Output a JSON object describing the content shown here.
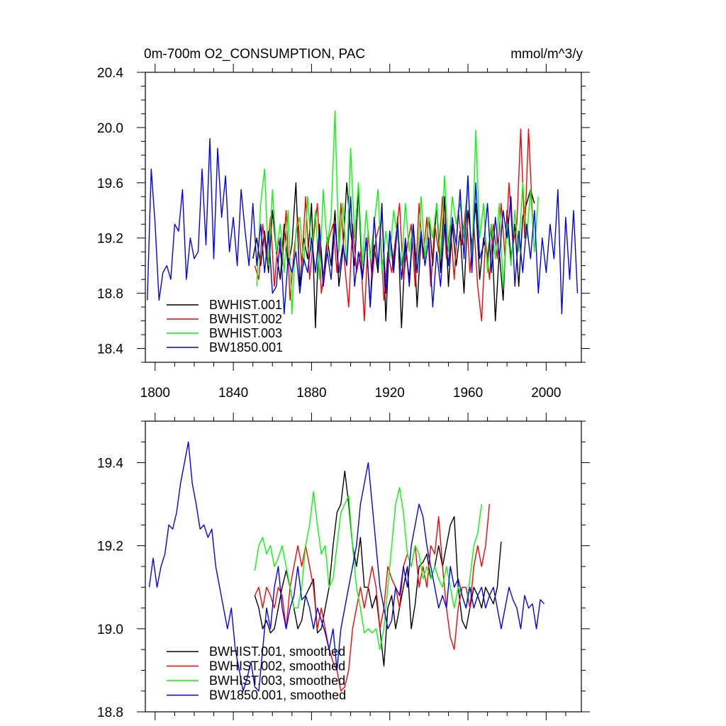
{
  "chart_data": [
    {
      "type": "line",
      "title": "0m-700m O2_CONSUMPTION, PAC",
      "units": "mmol/m^3/y",
      "xlim": [
        1795,
        2018
      ],
      "ylim": [
        18.3,
        20.4
      ],
      "xticks": [
        1800,
        1840,
        1880,
        1920,
        1960,
        2000
      ],
      "yticks": [
        18.4,
        18.8,
        19.2,
        19.6,
        20.0,
        20.4
      ],
      "ytick_labels": [
        "18.4",
        "18.8",
        "19.2",
        "19.6",
        "20.0",
        "20.4"
      ],
      "legend": "bottom-left",
      "series": [
        {
          "name": "BWHIST.001",
          "color": "#000000",
          "x_start": 1850,
          "step": 2,
          "values": [
            19.05,
            19.2,
            19.0,
            19.25,
            18.95,
            19.4,
            19.1,
            18.9,
            19.3,
            19.0,
            19.15,
            19.6,
            18.85,
            19.2,
            19.05,
            19.45,
            18.55,
            19.3,
            18.9,
            19.2,
            19.0,
            19.4,
            18.85,
            19.1,
            19.6,
            19.25,
            19.0,
            19.55,
            18.9,
            19.2,
            18.7,
            19.15,
            18.95,
            19.45,
            18.6,
            19.25,
            19.0,
            19.35,
            18.55,
            19.15,
            18.9,
            19.3,
            18.7,
            19.2,
            19.05,
            19.35,
            19.0,
            19.45,
            18.95,
            19.5,
            18.85,
            19.3,
            19.0,
            19.25,
            18.8,
            19.4,
            19.15,
            19.45,
            18.9,
            19.2,
            19.05,
            19.3,
            18.6,
            19.1,
            18.75,
            19.4,
            19.05,
            19.3,
            18.85,
            19.35,
            19.45,
            19.55,
            19.45
          ]
        },
        {
          "name": "BWHIST.002",
          "color": "#ff0000",
          "x_start": 1851,
          "step": 2,
          "values": [
            19.0,
            18.9,
            19.3,
            19.05,
            19.35,
            18.85,
            19.2,
            19.0,
            19.4,
            18.75,
            19.1,
            19.35,
            19.0,
            19.5,
            18.9,
            19.2,
            19.45,
            18.8,
            19.0,
            19.2,
            19.3,
            18.95,
            19.45,
            19.0,
            18.7,
            19.3,
            18.95,
            19.1,
            18.6,
            19.25,
            18.9,
            19.2,
            19.3,
            18.75,
            19.1,
            18.95,
            19.2,
            19.45,
            18.9,
            19.15,
            19.3,
            18.85,
            19.45,
            19.05,
            19.35,
            18.85,
            19.3,
            19.1,
            19.5,
            19.05,
            19.3,
            18.9,
            19.4,
            19.15,
            19.45,
            18.95,
            19.3,
            18.85,
            18.6,
            19.2,
            18.9,
            19.3,
            19.05,
            19.45,
            19.05,
            19.6,
            19.15,
            19.3,
            19.99,
            19.2,
            19.99,
            19.35
          ]
        },
        {
          "name": "BWHIST.003",
          "color": "#00ff00",
          "x_start": 1852,
          "step": 2,
          "values": [
            18.85,
            19.45,
            19.7,
            19.0,
            19.55,
            19.1,
            19.3,
            18.95,
            19.4,
            18.65,
            19.25,
            19.35,
            19.0,
            19.5,
            19.1,
            19.4,
            18.9,
            19.55,
            19.15,
            19.35,
            20.12,
            19.1,
            19.45,
            19.0,
            19.85,
            19.2,
            19.6,
            19.0,
            19.4,
            19.05,
            19.3,
            19.55,
            18.95,
            19.25,
            19.05,
            19.4,
            19.2,
            19.0,
            19.45,
            19.1,
            19.3,
            18.95,
            19.5,
            19.05,
            19.35,
            19.2,
            19.45,
            19.05,
            19.65,
            19.1,
            19.5,
            19.3,
            19.45,
            19.2,
            19.65,
            19.0,
            19.98,
            19.2,
            19.45,
            18.95,
            19.3,
            19.05,
            19.45,
            18.85,
            19.3,
            19.0,
            19.4,
            19.1,
            19.6,
            19.2,
            19.55,
            19.1,
            19.5
          ]
        },
        {
          "name": "BW1850.001",
          "color": "#0000ff",
          "x_start": 1796,
          "step": 2,
          "values": [
            18.75,
            19.7,
            19.3,
            18.75,
            18.95,
            19.0,
            18.9,
            19.3,
            19.25,
            19.55,
            18.9,
            19.2,
            19.05,
            19.1,
            19.7,
            19.15,
            19.92,
            19.05,
            19.85,
            19.35,
            19.65,
            19.1,
            19.35,
            19.0,
            19.55,
            19.25,
            19.0,
            19.45,
            19.0,
            19.3,
            18.95,
            19.25,
            18.8,
            18.85,
            19.2,
            18.65,
            19.05,
            18.95,
            19.1,
            18.8,
            19.05,
            18.95,
            19.2,
            18.95,
            19.25,
            18.85,
            19.1,
            18.9,
            19.3,
            18.95,
            19.15,
            19.0,
            19.5,
            18.85,
            19.1,
            18.9,
            19.2,
            18.7,
            19.35,
            19.0,
            19.4,
            18.8,
            19.25,
            18.95,
            19.3,
            18.9,
            19.2,
            18.85,
            19.3,
            18.95,
            19.25,
            19.0,
            19.2,
            18.7,
            19.1,
            18.85,
            19.3,
            19.0,
            19.35,
            19.15,
            19.55,
            19.05,
            19.65,
            18.95,
            19.6,
            19.05,
            19.15,
            19.45,
            18.95,
            19.35,
            19.05,
            19.4,
            19.2,
            19.5,
            18.85,
            19.25,
            18.95,
            19.3,
            19.05,
            19.4,
            18.8,
            19.2,
            18.95,
            19.3,
            19.05,
            19.55,
            18.65,
            19.35,
            18.9,
            19.4,
            18.8
          ]
        }
      ]
    },
    {
      "type": "line",
      "title": "",
      "xlim": [
        1795,
        2018
      ],
      "ylim": [
        18.8,
        19.5
      ],
      "xticks": [
        1800,
        1840,
        1880,
        1920,
        1960,
        2000
      ],
      "yticks": [
        18.8,
        19.0,
        19.2,
        19.4
      ],
      "ytick_labels": [
        "18.8",
        "19.0",
        "19.2",
        "19.4"
      ],
      "legend": "bottom-left",
      "series": [
        {
          "name": "BWHIST.001, smoothed",
          "color": "#000000",
          "x_start": 1851,
          "step": 2,
          "values": [
            19.08,
            19.05,
            19.0,
            19.02,
            18.99,
            19.0,
            19.05,
            19.1,
            19.14,
            19.1,
            19.05,
            19.0,
            19.02,
            19.08,
            19.1,
            19.12,
            18.99,
            19.0,
            19.05,
            19.1,
            19.2,
            19.28,
            19.3,
            19.38,
            19.3,
            19.2,
            19.15,
            19.22,
            19.1,
            19.1,
            19.05,
            19.08,
            19.0,
            18.91,
            19.05,
            19.08,
            19.0,
            19.05,
            19.1,
            19.15,
            19.0,
            19.06,
            19.15,
            19.16,
            19.18,
            19.12,
            19.15,
            19.2,
            19.15,
            19.2,
            19.25,
            19.27,
            19.1,
            19.02,
            19.0,
            19.05,
            19.1,
            19.08,
            19.05,
            19.1,
            19.08,
            19.06,
            19.1,
            19.21
          ]
        },
        {
          "name": "BWHIST.002, smoothed",
          "color": "#ff0000",
          "x_start": 1851,
          "step": 2,
          "values": [
            19.08,
            19.1,
            19.05,
            19.1,
            19.08,
            19.05,
            19.1,
            19.08,
            19.0,
            19.1,
            19.15,
            19.2,
            19.15,
            19.2,
            19.15,
            19.1,
            19.0,
            19.05,
            19.0,
            18.95,
            18.92,
            18.9,
            18.85,
            18.86,
            18.9,
            19.0,
            19.05,
            19.1,
            19.05,
            19.1,
            19.15,
            19.1,
            19.0,
            19.05,
            19.15,
            19.12,
            19.1,
            19.05,
            19.15,
            19.18,
            19.15,
            19.2,
            19.1,
            19.15,
            19.1,
            19.2,
            19.18,
            19.27,
            19.15,
            19.05,
            18.98,
            18.95,
            19.05,
            19.1,
            19.1,
            19.05,
            19.15,
            19.2,
            19.15,
            19.2,
            19.3
          ]
        },
        {
          "name": "BWHIST.003, smoothed",
          "color": "#00ff00",
          "x_start": 1851,
          "step": 2,
          "values": [
            19.14,
            19.2,
            19.22,
            19.18,
            19.2,
            19.15,
            19.17,
            19.2,
            19.15,
            19.1,
            19.05,
            19.05,
            19.1,
            19.2,
            19.25,
            19.33,
            19.25,
            19.18,
            19.2,
            19.1,
            19.12,
            19.2,
            19.28,
            19.3,
            19.32,
            19.2,
            19.1,
            19.05,
            18.99,
            19.0,
            18.99,
            19.0,
            18.95,
            19.0,
            19.1,
            19.2,
            19.3,
            19.34,
            19.28,
            19.18,
            19.15,
            19.2,
            19.18,
            19.12,
            19.15,
            19.12,
            19.15,
            19.12,
            19.1,
            19.15,
            19.1,
            19.05,
            19.1,
            19.08,
            19.05,
            19.12,
            19.2,
            19.23,
            19.3
          ]
        },
        {
          "name": "BW1850.001, smoothed",
          "color": "#0000ff",
          "x_start": 1797,
          "step": 2,
          "values": [
            19.1,
            19.17,
            19.1,
            19.15,
            19.18,
            19.25,
            19.24,
            19.28,
            19.35,
            19.4,
            19.45,
            19.35,
            19.3,
            19.24,
            19.25,
            19.22,
            19.24,
            19.15,
            19.1,
            19.05,
            19.0,
            19.05,
            18.95,
            18.9,
            18.85,
            18.88,
            18.92,
            18.86,
            18.85,
            18.95,
            19.05,
            19.0,
            19.1,
            19.15,
            19.05,
            19.0,
            19.05,
            19.08,
            19.15,
            19.07,
            19.08,
            19.05,
            19.0,
            19.05,
            19.02,
            18.99,
            18.95,
            19.0,
            18.9,
            19.0,
            19.05,
            19.1,
            19.15,
            19.2,
            19.3,
            19.35,
            19.4,
            19.3,
            19.2,
            19.1,
            19.05,
            19.0,
            19.02,
            19.1,
            19.08,
            19.15,
            19.1,
            19.2,
            19.25,
            19.3,
            19.27,
            19.2,
            19.15,
            19.1,
            19.05,
            19.08,
            19.05,
            19.15,
            19.1,
            19.12,
            19.08,
            19.05,
            19.1,
            19.05,
            19.08,
            19.1,
            19.05,
            19.08,
            19.1,
            19.05,
            19.0,
            19.05,
            19.1,
            19.07,
            19.05,
            19.0,
            19.08,
            19.05,
            19.06,
            19.0,
            19.07,
            19.06
          ]
        }
      ]
    }
  ]
}
